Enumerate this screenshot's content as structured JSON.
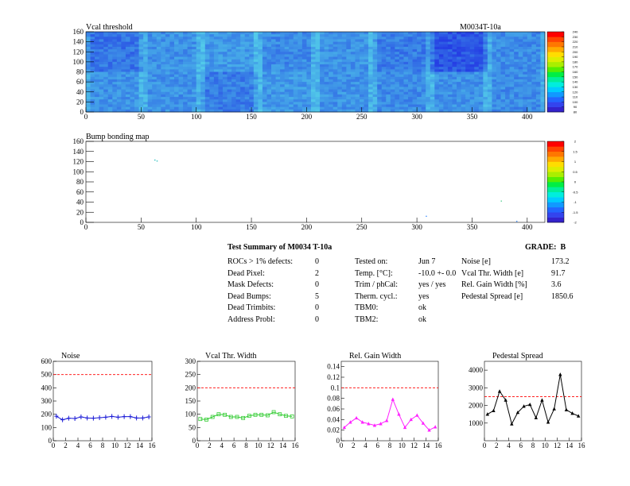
{
  "maps": {
    "vcal": {
      "title": "Vcal threshold",
      "module": "M0034T-10a",
      "x_ticks": [
        "0",
        "50",
        "100",
        "150",
        "200",
        "250",
        "300",
        "350",
        "400"
      ],
      "y_ticks": [
        "0",
        "20",
        "40",
        "60",
        "80",
        "100",
        "120",
        "140",
        "160"
      ],
      "xlim": [
        0,
        416
      ],
      "ylim": [
        0,
        160
      ],
      "palette_labels": [
        "80",
        "90",
        "100",
        "110",
        "120",
        "130",
        "140",
        "150",
        "160",
        "170",
        "180",
        "190",
        "200",
        "210",
        "220",
        "230",
        "240"
      ]
    },
    "bump": {
      "title": "Bump bonding map",
      "x_ticks": [
        "0",
        "50",
        "100",
        "150",
        "200",
        "250",
        "300",
        "350",
        "400"
      ],
      "y_ticks": [
        "0",
        "20",
        "40",
        "60",
        "80",
        "100",
        "120",
        "140",
        "160"
      ],
      "xlim": [
        0,
        416
      ],
      "ylim": [
        0,
        160
      ],
      "palette_labels": [
        "-2",
        "-1.5",
        "-1",
        "-0.5",
        "0",
        "0.5",
        "1",
        "1.5",
        "2"
      ]
    }
  },
  "summary": {
    "title": "Test Summary of M0034   T-10a",
    "grade_label": "GRADE:",
    "grade_value": "B",
    "col1": [
      {
        "label": "ROCs > 1% defects:",
        "value": "0"
      },
      {
        "label": "Dead Pixel:",
        "value": "2"
      },
      {
        "label": "Mask Defects:",
        "value": "0"
      },
      {
        "label": "Dead Bumps:",
        "value": "5"
      },
      {
        "label": "Dead Trimbits:",
        "value": "0"
      },
      {
        "label": "Address Probl:",
        "value": "0"
      }
    ],
    "col2": [
      {
        "label": "Tested on:",
        "value": "Jun 7"
      },
      {
        "label": "Temp. [°C]:",
        "value": "-10.0 +- 0.0"
      },
      {
        "label": "Trim / phCal:",
        "value": "yes / yes"
      },
      {
        "label": "Therm. cycl.:",
        "value": "yes"
      },
      {
        "label": "TBM0:",
        "value": "ok"
      },
      {
        "label": "TBM2:",
        "value": "ok"
      }
    ],
    "col3": [
      {
        "label": "Noise [e]",
        "value": "173.2"
      },
      {
        "label": "Vcal Thr. Width [e]",
        "value": "91.7"
      },
      {
        "label": "Rel. Gain Width [%]",
        "value": "3.6"
      },
      {
        "label": "Pedestal Spread [e]",
        "value": "1850.6"
      }
    ]
  },
  "chart_data": [
    {
      "type": "line",
      "title": "Noise",
      "x": [
        0,
        1,
        2,
        3,
        4,
        5,
        6,
        7,
        8,
        9,
        10,
        11,
        12,
        13,
        14,
        15
      ],
      "values": [
        185,
        158,
        170,
        168,
        180,
        172,
        170,
        174,
        178,
        184,
        178,
        182,
        182,
        172,
        172,
        180
      ],
      "ylim": [
        0,
        600
      ],
      "xlim": [
        0,
        16
      ],
      "y_ticks": [
        "0",
        "100",
        "200",
        "300",
        "400",
        "500",
        "600"
      ],
      "x_ticks": [
        "0",
        "2",
        "4",
        "6",
        "8",
        "10",
        "12",
        "14",
        "16"
      ],
      "threshold": 500,
      "color": "#1a1ad6",
      "marker": "star"
    },
    {
      "type": "line",
      "title": "Vcal Thr. Width",
      "x": [
        0,
        1,
        2,
        3,
        4,
        5,
        6,
        7,
        8,
        9,
        10,
        11,
        12,
        13,
        14,
        15
      ],
      "values": [
        82,
        80,
        90,
        100,
        98,
        90,
        90,
        86,
        94,
        98,
        98,
        96,
        108,
        100,
        94,
        92
      ],
      "ylim": [
        0,
        300
      ],
      "xlim": [
        0,
        16
      ],
      "y_ticks": [
        "0",
        "50",
        "100",
        "150",
        "200",
        "250",
        "300"
      ],
      "x_ticks": [
        "0",
        "2",
        "4",
        "6",
        "8",
        "10",
        "12",
        "14",
        "16"
      ],
      "threshold": 200,
      "color": "#33cc33",
      "marker": "square"
    },
    {
      "type": "line",
      "title": "Rel. Gain Width",
      "x": [
        0,
        1,
        2,
        3,
        4,
        5,
        6,
        7,
        8,
        9,
        10,
        11,
        12,
        13,
        14,
        15
      ],
      "values": [
        0.025,
        0.035,
        0.043,
        0.035,
        0.032,
        0.029,
        0.032,
        0.038,
        0.078,
        0.05,
        0.025,
        0.04,
        0.048,
        0.033,
        0.02,
        0.026
      ],
      "ylim": [
        0,
        0.15
      ],
      "xlim": [
        0,
        16
      ],
      "y_ticks": [
        "0",
        "0.02",
        "0.04",
        "0.06",
        "0.08",
        "0.1",
        "0.12",
        "0.14"
      ],
      "x_ticks": [
        "0",
        "2",
        "4",
        "6",
        "8",
        "10",
        "12",
        "14",
        "16"
      ],
      "threshold": 0.1,
      "color": "#ff22ff",
      "marker": "triangle"
    },
    {
      "type": "line",
      "title": "Pedestal Spread",
      "x": [
        0,
        1,
        2,
        3,
        4,
        5,
        6,
        7,
        8,
        9,
        10,
        11,
        12,
        13,
        14,
        15
      ],
      "values": [
        1500,
        1700,
        2800,
        2300,
        950,
        1600,
        1950,
        2050,
        1300,
        2300,
        1050,
        1800,
        3750,
        1750,
        1550,
        1400
      ],
      "ylim": [
        0,
        4500
      ],
      "xlim": [
        0,
        16
      ],
      "y_ticks": [
        "1000",
        "2000",
        "3000",
        "4000"
      ],
      "y_tick_values": [
        1000,
        2000,
        3000,
        4000
      ],
      "x_ticks": [
        "0",
        "2",
        "4",
        "6",
        "8",
        "10",
        "12",
        "14",
        "16"
      ],
      "threshold": 2500,
      "color": "#000000",
      "marker": "triangle"
    }
  ],
  "colors": {
    "map_base": "#3f63e8",
    "threshold_line": "#ff0000"
  }
}
